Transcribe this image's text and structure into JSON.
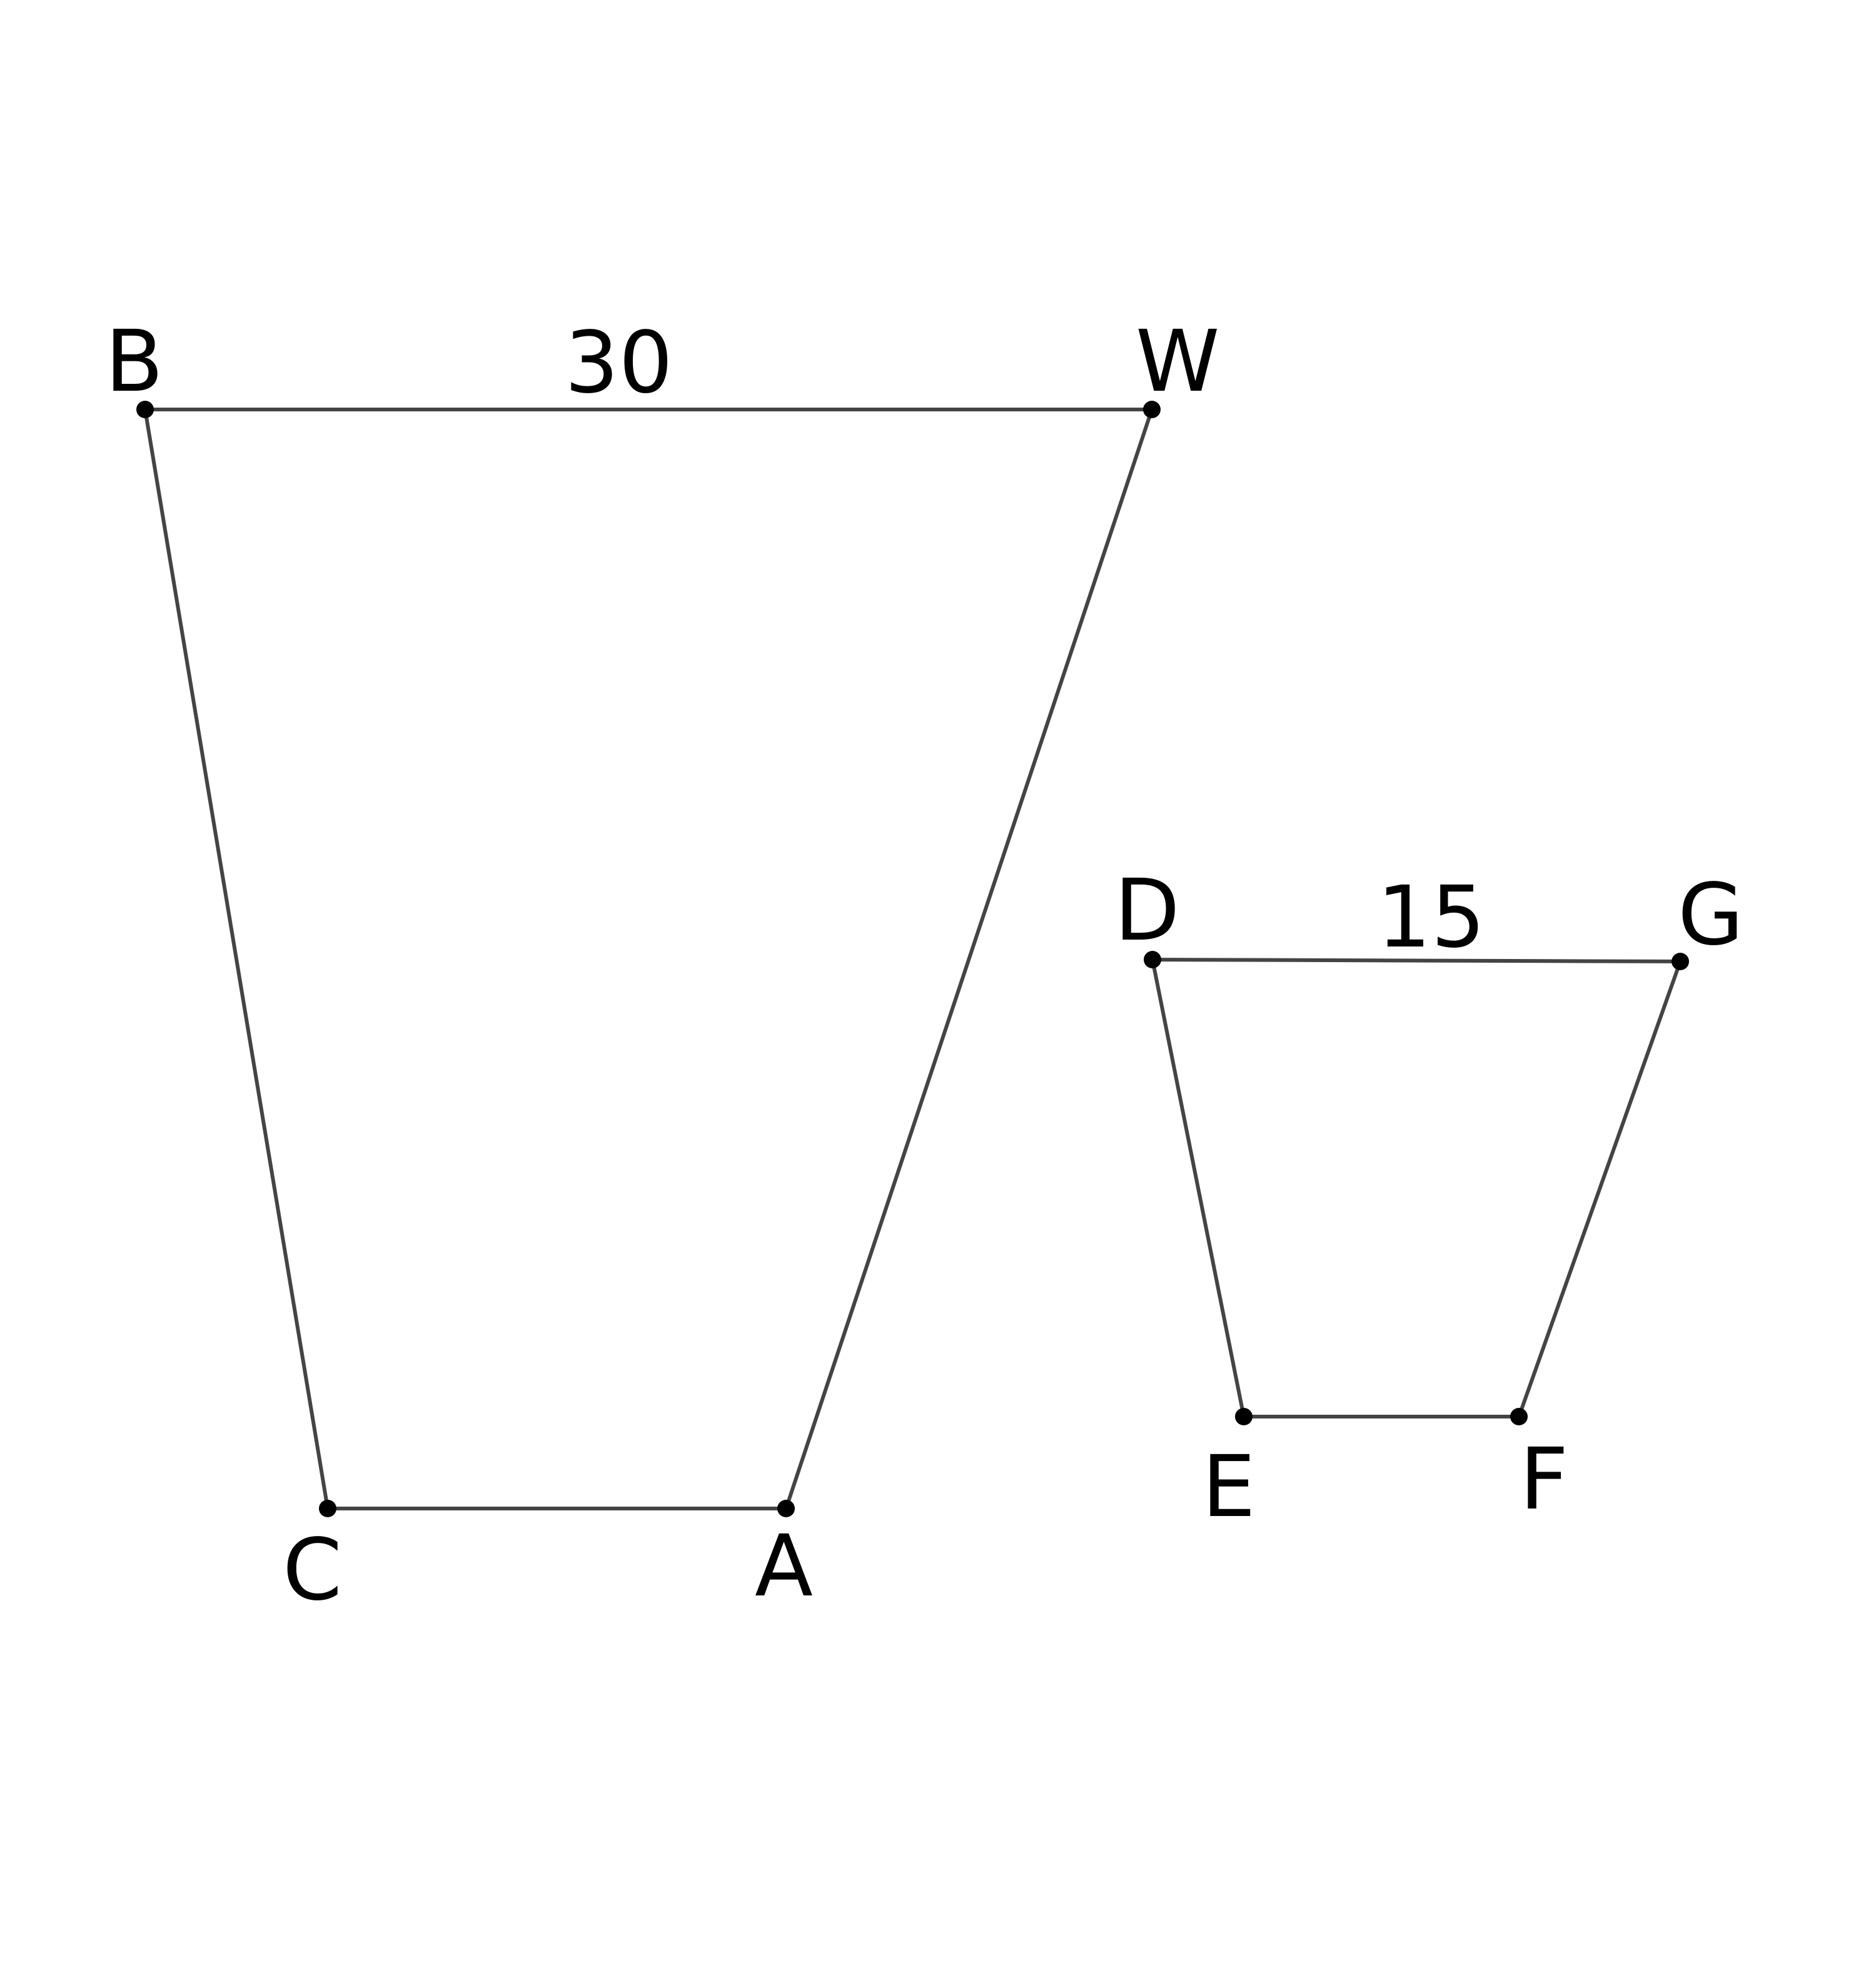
{
  "quadrilateral_1": {
    "vertices": [
      "B",
      "W",
      "A",
      "C"
    ],
    "side_label_BW": "30"
  },
  "quadrilateral_2": {
    "vertices": [
      "D",
      "G",
      "F",
      "E"
    ],
    "side_label_DG": "15"
  },
  "colors": {
    "edge": "#444444",
    "vertex": "#000000",
    "text": "#000000",
    "background": "#ffffff"
  }
}
